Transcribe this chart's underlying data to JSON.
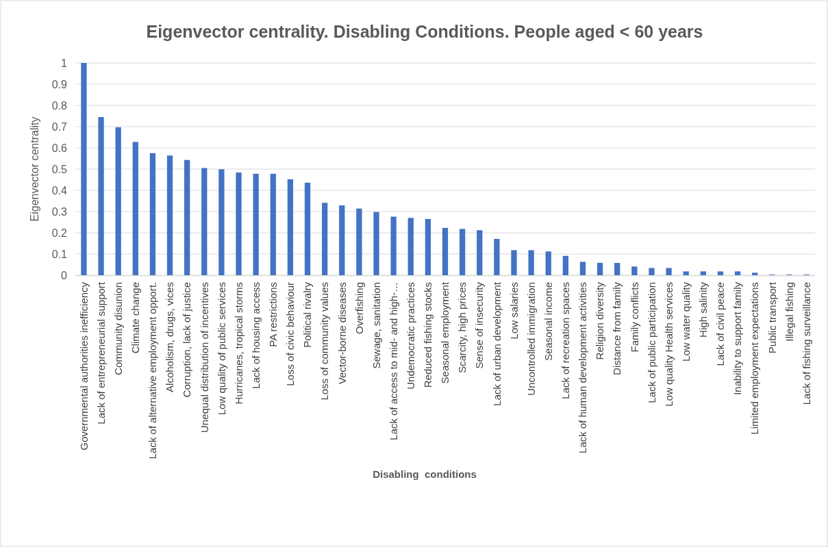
{
  "chart_data": {
    "type": "bar",
    "title": "Eigenvector centrality. Disabling Conditions. People aged < 60 years",
    "xlabel": "Disabling  conditions",
    "ylabel": "Eigenvector centrality",
    "categories": [
      "Governmental authorities inefficiency",
      "Lack of entrepreneurial support",
      "Community disunion",
      "Climate change",
      "Lack of alternative employment opport.",
      "Alcoholism, drugs, vices",
      "Corruption, lack of justice",
      "Unequal distribution of incentives",
      "Low quality of public services",
      "Hurricanes, tropical storms",
      "Lack of housing access",
      "PA restrictions",
      "Loss of civic behaviour",
      "Political rivalry",
      "Loss of community values",
      "Vector-borne diseases",
      "Overfishing",
      "Sewage, sanitation",
      "Lack of access to mid- and high-…",
      "Undemocratic practices",
      "Reduced fishing stocks",
      "Seasonal employment",
      "Scarcity, high prices",
      "Sense of insecurity",
      "Lack of urban development",
      "Low salaries",
      "Uncontrolled immigration",
      "Seasonal income",
      "Lack of recreation spaces",
      "Lack of human development activities",
      "Religion diversity",
      "Distance from family",
      "Family conflicts",
      "Lack of public participation",
      "Low quality Health services",
      "Low water quality",
      "High salinity",
      "Lack of civil peace",
      "Inability to support family",
      "Limited employment expectations",
      "Public transport",
      "Illegal fishing",
      "Lack of fishing surveillance"
    ],
    "values": [
      1,
      0.745,
      0.697,
      0.628,
      0.575,
      0.564,
      0.543,
      0.505,
      0.499,
      0.484,
      0.478,
      0.478,
      0.452,
      0.436,
      0.341,
      0.329,
      0.314,
      0.298,
      0.276,
      0.27,
      0.265,
      0.223,
      0.218,
      0.212,
      0.171,
      0.118,
      0.118,
      0.112,
      0.091,
      0.063,
      0.058,
      0.058,
      0.041,
      0.034,
      0.034,
      0.018,
      0.018,
      0.018,
      0.018,
      0.012,
      0.003,
      0.003,
      0.003
    ],
    "color": "#4472c4",
    "ylim": [
      0,
      1
    ],
    "yticks": [
      0,
      0.1,
      0.2,
      0.3,
      0.4,
      0.5,
      0.6,
      0.7,
      0.8,
      0.9,
      1
    ],
    "grid": "y"
  }
}
